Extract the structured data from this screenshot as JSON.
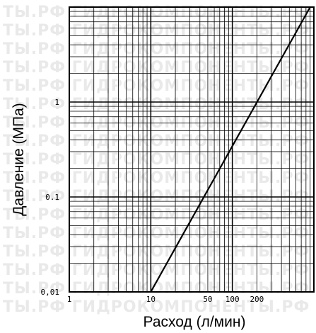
{
  "watermark": {
    "rows": [
      "ТЫ.РФ ГИДРОКОМПОНЕНТЫ.РФ ГИДРОКОМПОНЕНТЫ.РФ ГИДРО",
      "ТЫ.РФ ГИДРОКОМПОНЕНТЫ.РФ ГИДРОКОМПОНЕНТЫ.РФ ГИДРО",
      "ТЫ.РФ ГИДРОКОМПОНЕНТЫ.РФ ГИДРОКОМПОНЕНТЫ.РФ ГИДРО",
      "ТЫ.РФ ГИДРОКОМПОНЕНТЫ.РФ ГИДРОКОМПОНЕНТЫ.РФ ГИДРО",
      "ТЫ.РФ ГИДРОКОМПОНЕНТЫ.РФ ГИДРОКОМПОНЕНТЫ.РФ ГИДРО",
      "ТЫ.РФ ГИДРОКОМПОНЕНТЫ.РФ ГИДРОКОМПОНЕНТЫ.РФ ГИДРО",
      "ТЫ.РФ ГИДРОКОМПОНЕНТЫ.РФ ГИДРОКОМПОНЕНТЫ.РФ ГИДРО",
      "ТЫ.РФ ГИДРОКОМПОНЕНТЫ.РФ ГИДРОКОМПОНЕНТЫ.РФ ГИДРО",
      "ТЫ.РФ ГИДРОКОМПОНЕНТЫ.РФ ГИДРОКОМПОНЕНТЫ.РФ ГИДРО",
      "ТЫ.РФ ГИДРОКОМПОНЕНТЫ.РФ ГИДРОКОМПОНЕНТЫ.РФ ГИДРО",
      "ТЫ.РФ ГИДРОКОМПОНЕНТЫ.РФ ГИДРОКОМПОНЕНТЫ.РФ ГИДРО",
      "ТЫ.РФ ГИДРОКОМПОНЕНТЫ.РФ ГИДРОКОМПОНЕНТЫ.РФ ГИДРО",
      "ТЫ.РФ ГИДРОКОМПОНЕНТЫ.РФ ГИДРОКОМПОНЕНТЫ.РФ ГИДРО",
      "ТЫ.РФ ГИДРОКОМПОНЕНТЫ.РФ ГИДРОКОМПОНЕНТЫ.РФ ГИДРО",
      "ТЫ.РФ ГИДРОКОМПОНЕНТЫ.РФ ГИДРОКОМПОНЕНТЫ.РФ ГИДРО",
      "ТЫ.РФ ГИДРОКОМПОНЕНТЫ.РФ ГИДРОКОМПОНЕНТЫ.РФ ГИДРО",
      "ТЫ.РФ ГИДРОКОМПОНЕНТЫ.РФ ГИДРОКОМПОНЕНТЫ.РФ ГИДРО"
    ]
  },
  "chart_data": {
    "type": "line",
    "title": "",
    "xlabel": "Расход (л/мин)",
    "ylabel": "Давление (МПа)",
    "x_scale": "log",
    "y_scale": "log",
    "xlim": [
      1,
      1000
    ],
    "ylim": [
      0.01,
      10
    ],
    "x_ticks": [
      {
        "value": 1,
        "label": "1"
      },
      {
        "value": 10,
        "label": "10"
      },
      {
        "value": 50,
        "label": "50"
      },
      {
        "value": 100,
        "label": "100"
      },
      {
        "value": 200,
        "label": "200"
      }
    ],
    "y_ticks": [
      {
        "value": 0.01,
        "label": "0,01"
      },
      {
        "value": 0.1,
        "label": "0.1"
      },
      {
        "value": 1,
        "label": "1"
      }
    ],
    "grid": true,
    "series": [
      {
        "x": [
          10,
          900
        ],
        "y": [
          0.01,
          10
        ]
      }
    ]
  }
}
